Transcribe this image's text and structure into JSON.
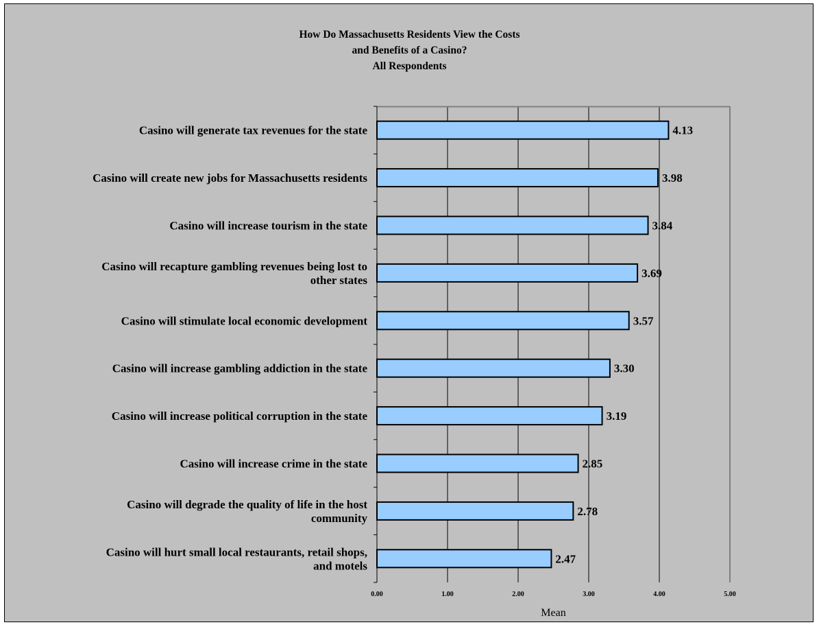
{
  "chart_data": {
    "type": "bar",
    "orientation": "horizontal",
    "title_lines": [
      "How Do Massachusetts Residents View the Costs",
      "and Benefits of a Casino?",
      "All Respondents"
    ],
    "xlabel": "Mean",
    "ylabel": "",
    "xlim": [
      0,
      5
    ],
    "ticks": [
      "0.00",
      "1.00",
      "2.00",
      "3.00",
      "4.00",
      "5.00"
    ],
    "grid": true,
    "legend": "none",
    "bar_color": "#99ccff",
    "background_color": "#c0c0c0",
    "categories": [
      [
        "Casino will generate tax revenues for the state"
      ],
      [
        "Casino will create new jobs for Massachusetts residents"
      ],
      [
        "Casino will increase tourism in the state"
      ],
      [
        "Casino will recapture gambling revenues being lost to",
        "other states"
      ],
      [
        "Casino will stimulate local economic development"
      ],
      [
        "Casino will increase gambling addiction in the state"
      ],
      [
        "Casino will increase political corruption in the state"
      ],
      [
        "Casino will increase crime in the state"
      ],
      [
        "Casino will degrade the quality of life in the host",
        "community"
      ],
      [
        "Casino will hurt small local restaurants, retail shops,",
        "and motels"
      ]
    ],
    "values": [
      4.13,
      3.98,
      3.84,
      3.69,
      3.57,
      3.3,
      3.19,
      2.85,
      2.78,
      2.47
    ],
    "value_labels": [
      "4.13",
      "3.98",
      "3.84",
      "3.69",
      "3.57",
      "3.30",
      "3.19",
      "2.85",
      "2.78",
      "2.47"
    ]
  }
}
